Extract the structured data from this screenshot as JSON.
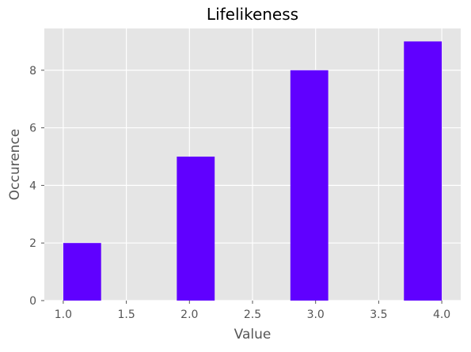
{
  "chart_data": {
    "type": "bar",
    "title": "Lifelikeness",
    "xlabel": "Value",
    "ylabel": "Occurence",
    "bins": [
      {
        "start": 1.0,
        "end": 1.3,
        "value": 2
      },
      {
        "start": 1.9,
        "end": 2.2,
        "value": 5
      },
      {
        "start": 2.8,
        "end": 3.1,
        "value": 8
      },
      {
        "start": 3.7,
        "end": 4.0,
        "value": 9
      }
    ],
    "xlim": [
      0.85,
      4.15
    ],
    "ylim": [
      0,
      9.45
    ],
    "xticks": [
      1.0,
      1.5,
      2.0,
      2.5,
      3.0,
      3.5,
      4.0
    ],
    "xtick_labels": [
      "1.0",
      "1.5",
      "2.0",
      "2.5",
      "3.0",
      "3.5",
      "4.0"
    ],
    "yticks": [
      0,
      2,
      4,
      6,
      8
    ],
    "ytick_labels": [
      "0",
      "2",
      "4",
      "6",
      "8"
    ],
    "grid": true,
    "colors": {
      "bar": "#6000ff",
      "plot_background": "#e5e5e5",
      "grid": "#ffffff",
      "tick_text": "#555555",
      "title_text": "#000000"
    }
  }
}
